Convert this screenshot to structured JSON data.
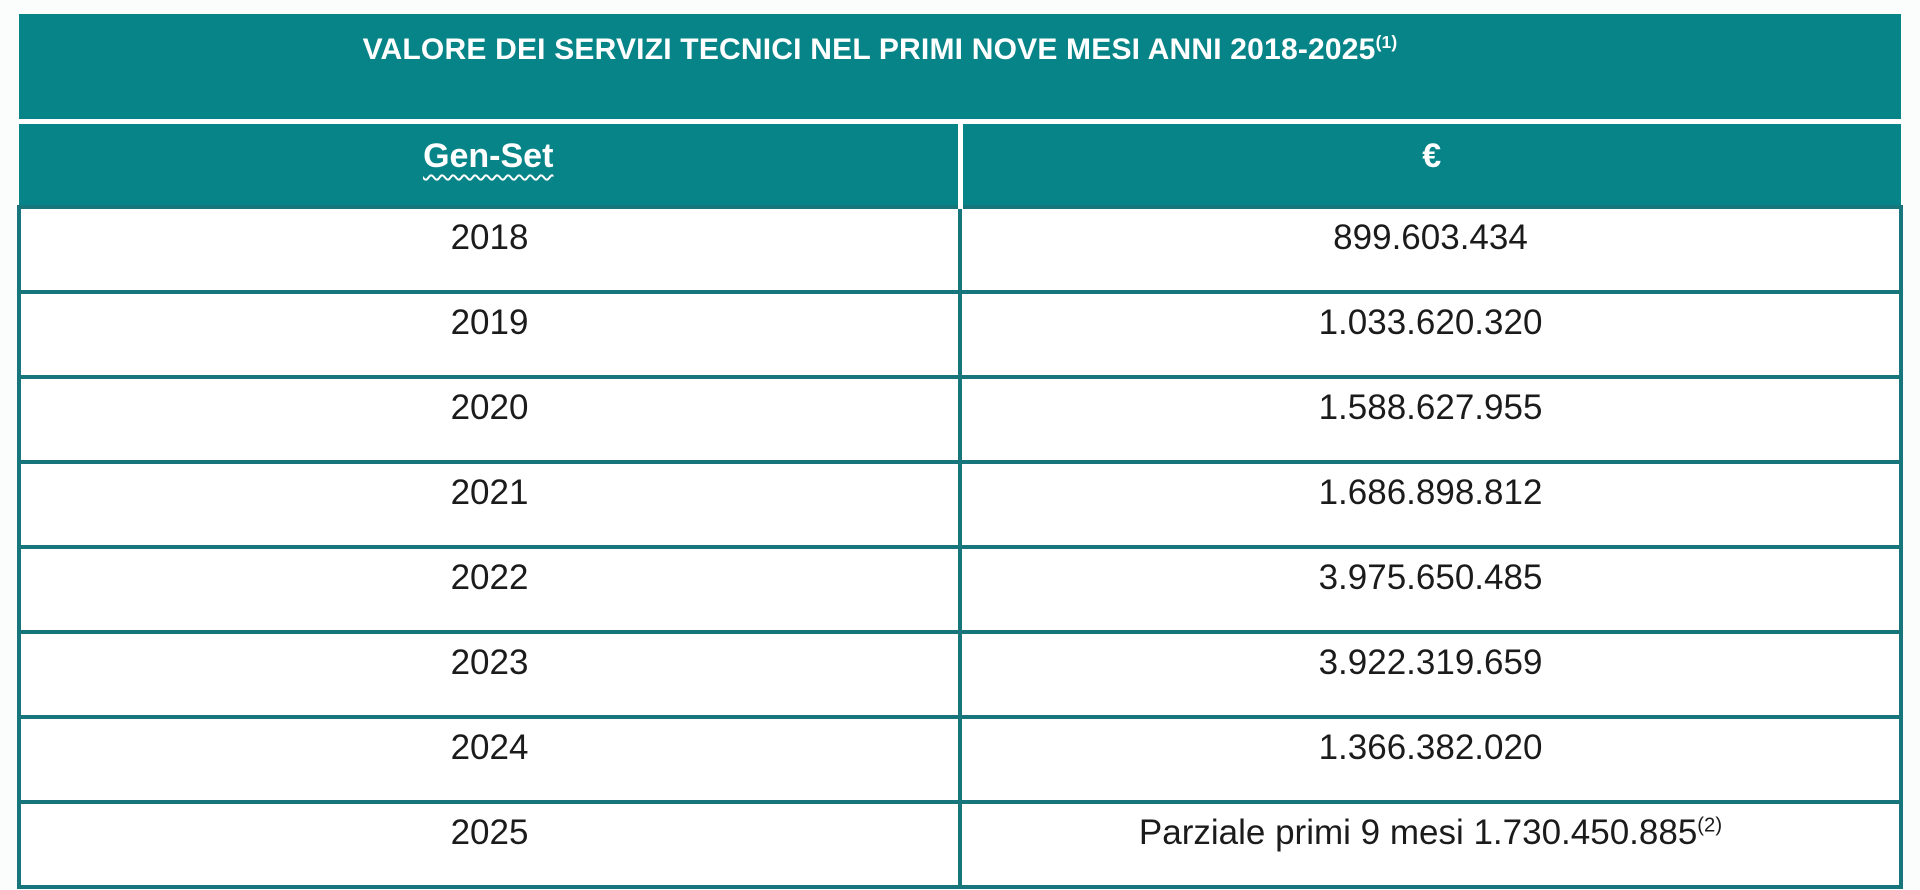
{
  "colors": {
    "header_fill": "#078487",
    "grid_line": "#17767c",
    "header_text": "#ffffff",
    "body_text": "#1b1b1b"
  },
  "table": {
    "title": {
      "text": "VALORE DEI SERVIZI TECNICI NEL PRIMI NOVE MESI ANNI 2018-2025",
      "superscript": "(1)"
    },
    "columns": [
      {
        "label": "Gen-Set"
      },
      {
        "label": "€"
      }
    ],
    "rows": [
      {
        "year": "2018",
        "value": "899.603.434"
      },
      {
        "year": "2019",
        "value": "1.033.620.320"
      },
      {
        "year": "2020",
        "value": "1.588.627.955"
      },
      {
        "year": "2021",
        "value": "1.686.898.812"
      },
      {
        "year": "2022",
        "value": "3.975.650.485"
      },
      {
        "year": "2023",
        "value": "3.922.319.659"
      },
      {
        "year": "2024",
        "value": "1.366.382.020"
      },
      {
        "year": "2025",
        "value": "Parziale primi 9 mesi 1.730.450.885",
        "superscript": "(2)"
      }
    ]
  },
  "chart_data": {
    "type": "table",
    "title": "VALORE DEI SERVIZI TECNICI NEL PRIMI NOVE MESI ANNI 2018-2025(1)",
    "columns": [
      "Gen-Set",
      "€"
    ],
    "rows": [
      [
        "2018",
        "899.603.434"
      ],
      [
        "2019",
        "1.033.620.320"
      ],
      [
        "2020",
        "1.588.627.955"
      ],
      [
        "2021",
        "1.686.898.812"
      ],
      [
        "2022",
        "3.975.650.485"
      ],
      [
        "2023",
        "3.922.319.659"
      ],
      [
        "2024",
        "1.366.382.020"
      ],
      [
        "2025",
        "Parziale primi 9 mesi 1.730.450.885(2)"
      ]
    ]
  }
}
